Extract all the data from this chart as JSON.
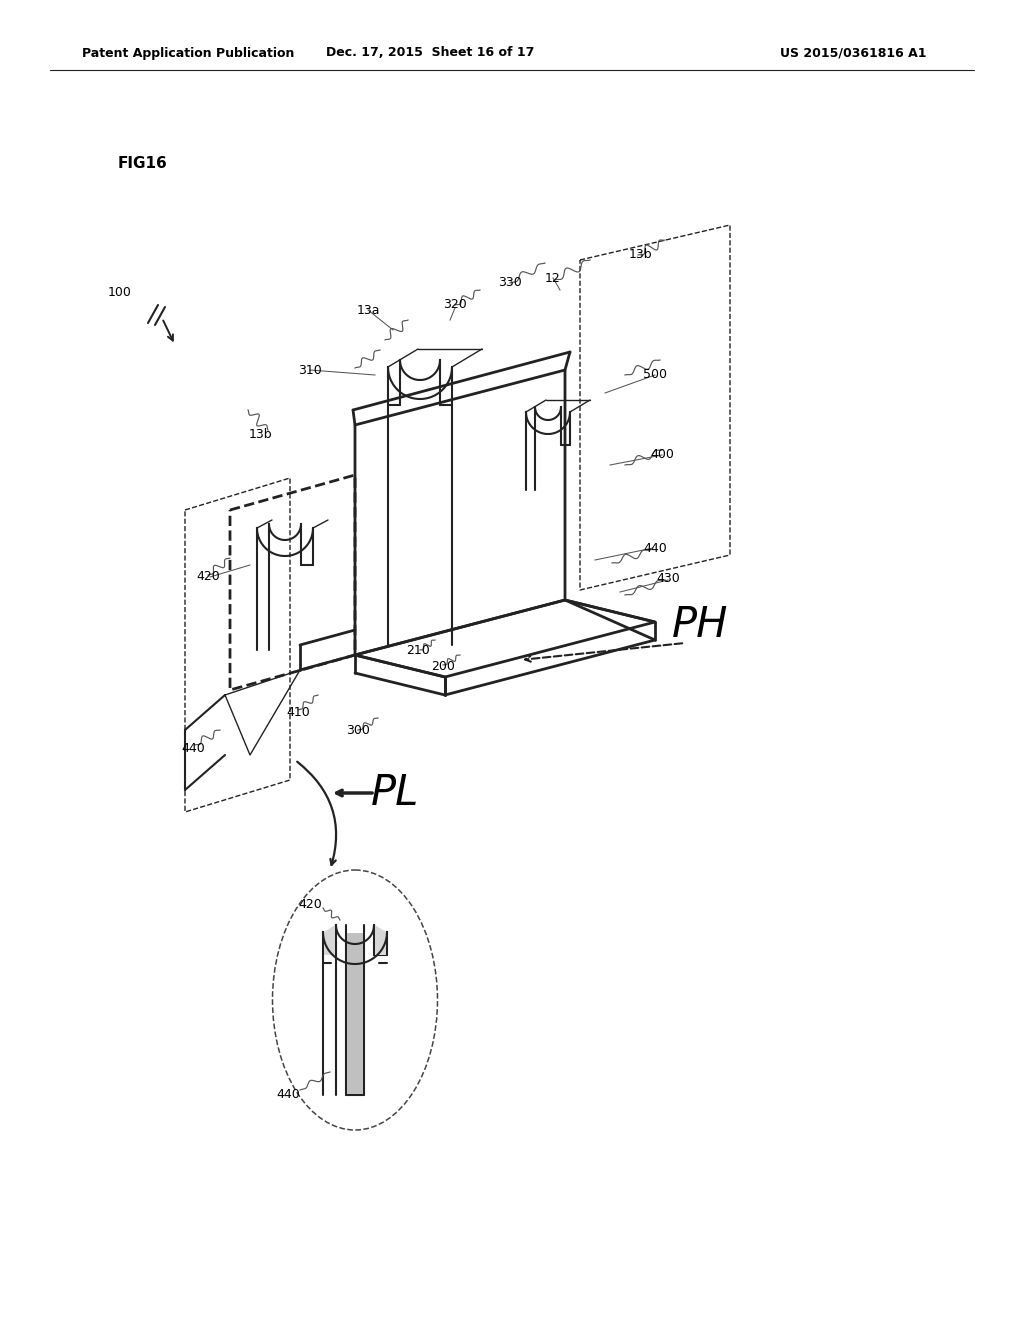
{
  "background_color": "#ffffff",
  "header_left": "Patent Application Publication",
  "header_center": "Dec. 17, 2015  Sheet 16 of 17",
  "header_right": "US 2015/0361816 A1",
  "fig_label": "FIG16",
  "header_fontsize": 9.5,
  "fig_label_fontsize": 11
}
